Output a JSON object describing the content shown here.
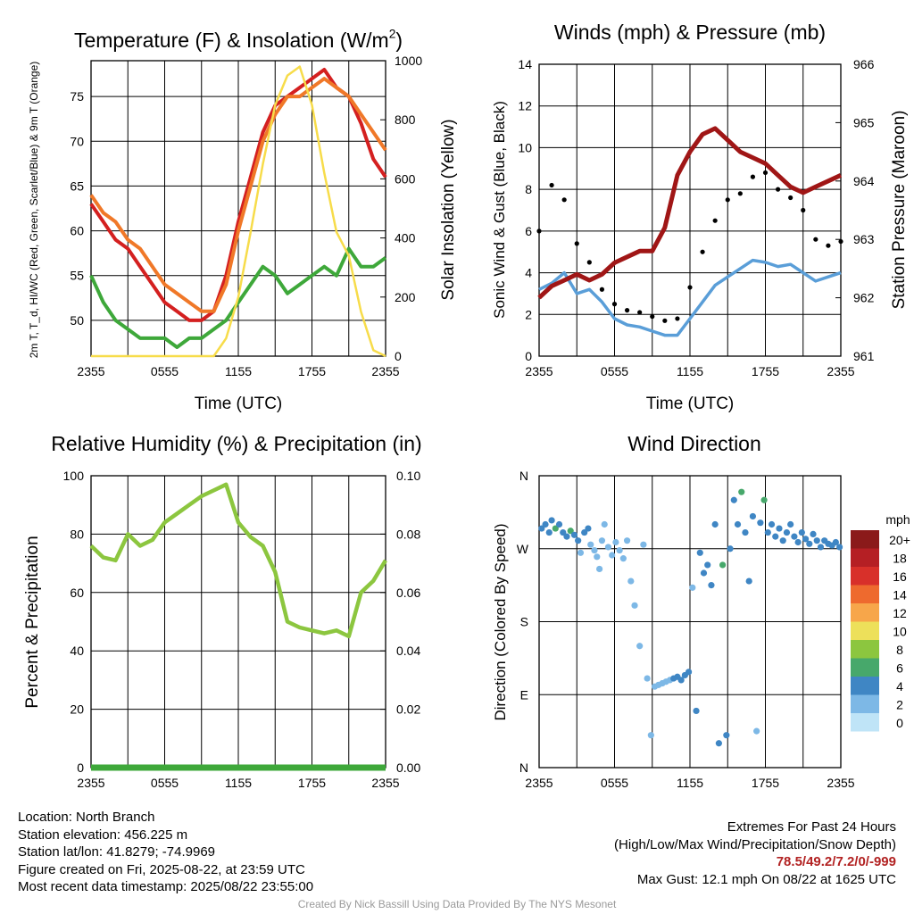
{
  "colors": {
    "red": "#d42020",
    "orange": "#f07828",
    "green": "#3ea83a",
    "yellow": "#f7dc4a",
    "black": "#000000",
    "blue": "#5a9ed8",
    "maroon": "#a01616",
    "rh_green": "#8cc63f",
    "precip_green": "#3ea83a",
    "extreme_red": "#b22222"
  },
  "chart_data": [
    {
      "type": "line",
      "title": "Temperature (F) & Insolation (W/m²)",
      "xlabel": "Time (UTC)",
      "ylabel": "2m T, T_d, HI/WC (Red, Green, Scarlet/Blue) & 9m T (Orange)",
      "ylabel2": "Solar Insolation (Yellow)",
      "x_ticks": [
        "2355",
        "0555",
        "1155",
        "1755",
        "2355"
      ],
      "ylim": [
        46,
        79
      ],
      "y_ticks": [
        50,
        55,
        60,
        65,
        70,
        75
      ],
      "ylim2": [
        0,
        1000
      ],
      "y2_ticks": [
        0,
        200,
        400,
        600,
        800,
        1000
      ],
      "grid": true,
      "x": [
        0,
        1,
        2,
        3,
        4,
        5,
        6,
        7,
        8,
        9,
        10,
        11,
        12,
        13,
        14,
        15,
        16,
        17,
        18,
        19,
        20,
        21,
        22,
        23,
        24
      ],
      "series": [
        {
          "color_key": "red",
          "axis": "left",
          "values": [
            63,
            61,
            59,
            58,
            56,
            54,
            52,
            51,
            50,
            50,
            51,
            55,
            61,
            66,
            71,
            74,
            75,
            76,
            77,
            78,
            76,
            75,
            72,
            68,
            66
          ]
        },
        {
          "color_key": "orange",
          "axis": "left",
          "values": [
            64,
            62,
            61,
            59,
            58,
            56,
            54,
            53,
            52,
            51,
            51,
            54,
            60,
            65,
            70,
            73,
            75,
            75,
            76,
            77,
            76,
            75,
            73,
            71,
            69
          ]
        },
        {
          "color_key": "green",
          "axis": "left",
          "values": [
            55,
            52,
            50,
            49,
            48,
            48,
            48,
            47,
            48,
            48,
            49,
            50,
            52,
            54,
            56,
            55,
            53,
            54,
            55,
            56,
            55,
            58,
            56,
            56,
            57
          ]
        },
        {
          "color_key": "yellow",
          "axis": "right",
          "values": [
            0,
            0,
            0,
            0,
            0,
            0,
            0,
            0,
            0,
            0,
            0,
            60,
            200,
            420,
            650,
            850,
            950,
            980,
            850,
            620,
            420,
            340,
            150,
            20,
            0
          ]
        }
      ]
    },
    {
      "type": "line",
      "title": "Winds (mph) & Pressure (mb)",
      "xlabel": "Time (UTC)",
      "ylabel": "Sonic Wind & Gust (Blue, Black)",
      "ylabel2": "Station Pressure (Maroon)",
      "x_ticks": [
        "2355",
        "0555",
        "1155",
        "1755",
        "2355"
      ],
      "ylim": [
        0,
        14
      ],
      "y_ticks": [
        0,
        2,
        4,
        6,
        8,
        10,
        12,
        14
      ],
      "ylim2": [
        961,
        966
      ],
      "y2_ticks": [
        961,
        962,
        963,
        964,
        965,
        966
      ],
      "grid": true,
      "x": [
        0,
        1,
        2,
        3,
        4,
        5,
        6,
        7,
        8,
        9,
        10,
        11,
        12,
        13,
        14,
        15,
        16,
        17,
        18,
        19,
        20,
        21,
        22,
        23,
        24
      ],
      "series": [
        {
          "color_key": "blue",
          "axis": "left",
          "values": [
            3.2,
            3.5,
            4.0,
            3.0,
            3.2,
            2.6,
            1.8,
            1.5,
            1.4,
            1.2,
            1.0,
            1.0,
            1.8,
            2.6,
            3.4,
            3.8,
            4.2,
            4.6,
            4.5,
            4.3,
            4.4,
            4.0,
            3.6,
            3.8,
            4.0
          ]
        },
        {
          "color_key": "black",
          "axis": "left",
          "values": [
            6.0,
            8.2,
            7.5,
            5.4,
            4.5,
            3.2,
            2.5,
            2.2,
            2.1,
            1.9,
            1.7,
            1.8,
            3.3,
            5.0,
            6.5,
            7.5,
            7.8,
            8.6,
            8.8,
            8.0,
            7.6,
            7.0,
            5.6,
            5.3,
            5.5
          ]
        },
        {
          "color_key": "maroon",
          "axis": "right",
          "values": [
            962.0,
            962.2,
            962.3,
            962.4,
            962.3,
            962.4,
            962.6,
            962.7,
            962.8,
            962.8,
            963.2,
            964.1,
            964.5,
            964.8,
            964.9,
            964.7,
            964.5,
            964.4,
            964.3,
            964.1,
            963.9,
            963.8,
            963.9,
            964.0,
            964.1
          ]
        }
      ]
    },
    {
      "type": "line",
      "title": "Relative Humidity (%) & Precipitation (in)",
      "xlabel": "",
      "ylabel": "Percent & Precipitation",
      "x_ticks": [
        "2355",
        "0555",
        "1155",
        "1755",
        "2355"
      ],
      "ylim": [
        0,
        100
      ],
      "y_ticks": [
        0,
        20,
        40,
        60,
        80,
        100
      ],
      "ylim2": [
        0,
        0.1
      ],
      "y2_ticks": [
        "0.00",
        "0.02",
        "0.04",
        "0.06",
        "0.08",
        "0.10"
      ],
      "grid": true,
      "x": [
        0,
        1,
        2,
        3,
        4,
        5,
        6,
        7,
        8,
        9,
        10,
        11,
        12,
        13,
        14,
        15,
        16,
        17,
        18,
        19,
        20,
        21,
        22,
        23,
        24
      ],
      "series": [
        {
          "color_key": "rh_green",
          "axis": "left",
          "values": [
            76,
            72,
            71,
            80,
            76,
            78,
            84,
            87,
            90,
            93,
            95,
            97,
            84,
            79,
            76,
            67,
            50,
            48,
            47,
            46,
            47,
            45,
            60,
            64,
            71
          ]
        },
        {
          "color_key": "precip_green",
          "axis": "right",
          "values": [
            0,
            0,
            0,
            0,
            0,
            0,
            0,
            0,
            0,
            0,
            0,
            0,
            0,
            0,
            0,
            0,
            0,
            0,
            0,
            0,
            0,
            0,
            0,
            0,
            0
          ]
        }
      ]
    },
    {
      "type": "scatter",
      "title": "Wind Direction",
      "xlabel": "",
      "ylabel": "Direction (Colored By Speed)",
      "x_ticks": [
        "2355",
        "0555",
        "1155",
        "1755",
        "2355"
      ],
      "y_ticks": [
        "N",
        "E",
        "S",
        "W",
        "N"
      ],
      "ylim": [
        0,
        360
      ],
      "grid": true,
      "legend": {
        "title": "mph",
        "labels": [
          "20+",
          "18",
          "16",
          "14",
          "12",
          "10",
          "8",
          "6",
          "4",
          "2",
          "0"
        ],
        "colors": [
          "#8b1a1a",
          "#b51f24",
          "#d8302a",
          "#ee6a2e",
          "#f7a64a",
          "#ede05a",
          "#8cc63f",
          "#47a86b",
          "#3f86c4",
          "#7db8e6",
          "#bfe4f7"
        ],
        "placement": "right"
      },
      "points": [
        {
          "x": 0.2,
          "dir": 295,
          "speed": 4
        },
        {
          "x": 0.5,
          "dir": 300,
          "speed": 4
        },
        {
          "x": 0.8,
          "dir": 290,
          "speed": 3
        },
        {
          "x": 1.0,
          "dir": 305,
          "speed": 4
        },
        {
          "x": 1.3,
          "dir": 295,
          "speed": 5
        },
        {
          "x": 1.6,
          "dir": 300,
          "speed": 4
        },
        {
          "x": 1.9,
          "dir": 290,
          "speed": 3
        },
        {
          "x": 2.2,
          "dir": 285,
          "speed": 4
        },
        {
          "x": 2.5,
          "dir": 292,
          "speed": 5
        },
        {
          "x": 2.8,
          "dir": 287,
          "speed": 4
        },
        {
          "x": 3.1,
          "dir": 280,
          "speed": 4
        },
        {
          "x": 3.3,
          "dir": 265,
          "speed": 2
        },
        {
          "x": 3.6,
          "dir": 290,
          "speed": 3
        },
        {
          "x": 3.9,
          "dir": 295,
          "speed": 3
        },
        {
          "x": 4.1,
          "dir": 275,
          "speed": 1
        },
        {
          "x": 4.4,
          "dir": 268,
          "speed": 1
        },
        {
          "x": 4.6,
          "dir": 260,
          "speed": 1
        },
        {
          "x": 4.8,
          "dir": 245,
          "speed": 1
        },
        {
          "x": 5.0,
          "dir": 280,
          "speed": 2
        },
        {
          "x": 5.2,
          "dir": 300,
          "speed": 1
        },
        {
          "x": 5.5,
          "dir": 272,
          "speed": 1
        },
        {
          "x": 5.8,
          "dir": 262,
          "speed": 1
        },
        {
          "x": 6.1,
          "dir": 278,
          "speed": 1
        },
        {
          "x": 6.4,
          "dir": 268,
          "speed": 1
        },
        {
          "x": 6.7,
          "dir": 258,
          "speed": 1
        },
        {
          "x": 7.0,
          "dir": 280,
          "speed": 1
        },
        {
          "x": 7.3,
          "dir": 230,
          "speed": 1
        },
        {
          "x": 7.6,
          "dir": 200,
          "speed": 1
        },
        {
          "x": 8.0,
          "dir": 150,
          "speed": 1
        },
        {
          "x": 8.3,
          "dir": 275,
          "speed": 1
        },
        {
          "x": 8.6,
          "dir": 110,
          "speed": 1
        },
        {
          "x": 8.9,
          "dir": 40,
          "speed": 1
        },
        {
          "x": 9.2,
          "dir": 100,
          "speed": 1
        },
        {
          "x": 9.5,
          "dir": 102,
          "speed": 1
        },
        {
          "x": 9.8,
          "dir": 104,
          "speed": 2
        },
        {
          "x": 10.1,
          "dir": 106,
          "speed": 2
        },
        {
          "x": 10.4,
          "dir": 108,
          "speed": 2
        },
        {
          "x": 10.7,
          "dir": 110,
          "speed": 3
        },
        {
          "x": 11.0,
          "dir": 112,
          "speed": 3
        },
        {
          "x": 11.3,
          "dir": 108,
          "speed": 3
        },
        {
          "x": 11.6,
          "dir": 114,
          "speed": 3
        },
        {
          "x": 11.9,
          "dir": 118,
          "speed": 4
        },
        {
          "x": 12.2,
          "dir": 222,
          "speed": 2
        },
        {
          "x": 12.5,
          "dir": 70,
          "speed": 3
        },
        {
          "x": 12.8,
          "dir": 265,
          "speed": 3
        },
        {
          "x": 13.1,
          "dir": 240,
          "speed": 4
        },
        {
          "x": 13.4,
          "dir": 250,
          "speed": 4
        },
        {
          "x": 13.7,
          "dir": 225,
          "speed": 4
        },
        {
          "x": 14.0,
          "dir": 300,
          "speed": 4
        },
        {
          "x": 14.3,
          "dir": 30,
          "speed": 4
        },
        {
          "x": 14.6,
          "dir": 250,
          "speed": 6
        },
        {
          "x": 14.9,
          "dir": 40,
          "speed": 4
        },
        {
          "x": 15.2,
          "dir": 270,
          "speed": 4
        },
        {
          "x": 15.5,
          "dir": 330,
          "speed": 4
        },
        {
          "x": 15.8,
          "dir": 300,
          "speed": 4
        },
        {
          "x": 16.1,
          "dir": 340,
          "speed": 6
        },
        {
          "x": 16.4,
          "dir": 290,
          "speed": 4
        },
        {
          "x": 16.7,
          "dir": 230,
          "speed": 4
        },
        {
          "x": 17.0,
          "dir": 310,
          "speed": 4
        },
        {
          "x": 17.3,
          "dir": 45,
          "speed": 2
        },
        {
          "x": 17.6,
          "dir": 302,
          "speed": 4
        },
        {
          "x": 17.9,
          "dir": 330,
          "speed": 5
        },
        {
          "x": 18.2,
          "dir": 290,
          "speed": 4
        },
        {
          "x": 18.5,
          "dir": 300,
          "speed": 3
        },
        {
          "x": 18.8,
          "dir": 285,
          "speed": 4
        },
        {
          "x": 19.1,
          "dir": 295,
          "speed": 4
        },
        {
          "x": 19.4,
          "dir": 280,
          "speed": 3
        },
        {
          "x": 19.7,
          "dir": 290,
          "speed": 4
        },
        {
          "x": 20.0,
          "dir": 300,
          "speed": 4
        },
        {
          "x": 20.3,
          "dir": 285,
          "speed": 3
        },
        {
          "x": 20.6,
          "dir": 278,
          "speed": 4
        },
        {
          "x": 20.9,
          "dir": 290,
          "speed": 3
        },
        {
          "x": 21.2,
          "dir": 282,
          "speed": 4
        },
        {
          "x": 21.5,
          "dir": 276,
          "speed": 4
        },
        {
          "x": 21.8,
          "dir": 288,
          "speed": 3
        },
        {
          "x": 22.1,
          "dir": 280,
          "speed": 4
        },
        {
          "x": 22.4,
          "dir": 272,
          "speed": 3
        },
        {
          "x": 22.7,
          "dir": 280,
          "speed": 3
        },
        {
          "x": 23.0,
          "dir": 276,
          "speed": 3
        },
        {
          "x": 23.3,
          "dir": 274,
          "speed": 4
        },
        {
          "x": 23.6,
          "dir": 278,
          "speed": 3
        },
        {
          "x": 23.9,
          "dir": 272,
          "speed": 3
        }
      ]
    }
  ],
  "info": {
    "location": "Location: North Branch",
    "elevation": "Station elevation: 456.225 m",
    "latlon": "Station lat/lon: 41.8279; -74.9969",
    "created": "Figure created on Fri, 2025-08-22, at 23:59 UTC",
    "recent": "Most recent data timestamp: 2025/08/22 23:55:00"
  },
  "extremes": {
    "title": "Extremes For Past 24 Hours",
    "subtitle": "(High/Low/Max Wind/Precipitation/Snow Depth)",
    "values": "78.5/49.2/7.2/0/-999",
    "gust": "Max Gust: 12.1 mph On 08/22 at 1625 UTC"
  },
  "credit": "Created By Nick Bassill Using Data Provided By The NYS Mesonet"
}
